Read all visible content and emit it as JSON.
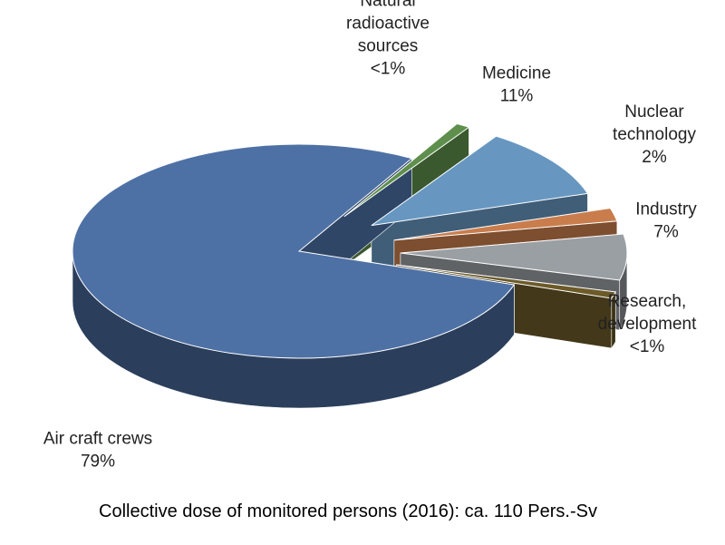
{
  "chart_data": {
    "type": "pie",
    "title": "",
    "caption": "Collective dose of monitored persons (2016):  ca. 110 Pers.-Sv",
    "legend": "none",
    "slices": [
      {
        "label": [
          "Natural",
          "radioactive",
          "sources"
        ],
        "value_label": "<1%",
        "value": 1,
        "color": "#5E8F4C"
      },
      {
        "label": [
          "Medicine"
        ],
        "value_label": "11%",
        "value": 11,
        "color": "#6797C1"
      },
      {
        "label": [
          "Nuclear",
          "technology"
        ],
        "value_label": "2%",
        "value": 2,
        "color": "#C97D4C"
      },
      {
        "label": [
          "Industry"
        ],
        "value_label": "7%",
        "value": 7,
        "color": "#9A9FA4"
      },
      {
        "label": [
          "Research,",
          "development"
        ],
        "value_label": "<1%",
        "value": 1,
        "color": "#6C5A28"
      },
      {
        "label": [
          "Air craft crews"
        ],
        "value_label": "79%",
        "value": 79,
        "color": "#4E71A5"
      }
    ]
  }
}
